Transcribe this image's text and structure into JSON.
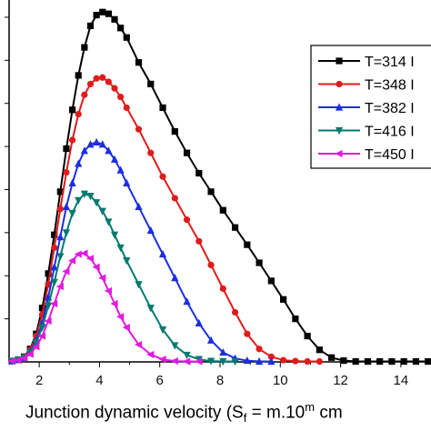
{
  "chart_data": {
    "type": "line",
    "xlabel": {
      "prefix": "Junction dynamic velocity (S",
      "sub": "f",
      "mid": " = m.10",
      "sup": "m",
      "suffix": " cm"
    },
    "xlim": [
      1,
      15
    ],
    "ylim": [
      0,
      8.4
    ],
    "x_ticks": [
      2,
      4,
      6,
      8,
      10,
      12,
      14
    ],
    "y_ticks": [
      1,
      2,
      3,
      4,
      5,
      6,
      7,
      8
    ],
    "grid": false,
    "legend_position": "top-right",
    "series": [
      {
        "name": "T=314 I",
        "color": "#000000",
        "marker": "square",
        "x": [
          1.1,
          1.3,
          1.5,
          1.7,
          1.9,
          2.1,
          2.3,
          2.5,
          2.7,
          2.9,
          3.1,
          3.3,
          3.5,
          3.7,
          3.9,
          4.1,
          4.3,
          4.5,
          4.7,
          4.9,
          5.3,
          5.7,
          6.1,
          6.5,
          6.9,
          7.3,
          7.7,
          8.1,
          8.5,
          8.9,
          9.3,
          9.7,
          10.1,
          10.5,
          10.9,
          11.3,
          11.7,
          12.1,
          12.5,
          12.9,
          13.3,
          13.7,
          14.1,
          14.5,
          14.9
        ],
        "y": [
          0.02,
          0.05,
          0.12,
          0.3,
          0.65,
          1.25,
          2.05,
          2.95,
          3.95,
          4.95,
          5.85,
          6.65,
          7.3,
          7.8,
          8.05,
          8.12,
          8.08,
          7.95,
          7.75,
          7.53,
          6.95,
          6.45,
          5.9,
          5.35,
          4.85,
          4.38,
          3.95,
          3.52,
          3.12,
          2.72,
          2.3,
          1.88,
          1.45,
          1.0,
          0.6,
          0.28,
          0.1,
          0.03,
          0.01,
          0.01,
          0.01,
          0.01,
          0.01,
          0.01,
          0.01
        ]
      },
      {
        "name": "T=348 I",
        "color": "#e01b1b",
        "marker": "circle",
        "x": [
          1.1,
          1.3,
          1.5,
          1.7,
          1.9,
          2.1,
          2.3,
          2.5,
          2.7,
          2.9,
          3.1,
          3.3,
          3.5,
          3.7,
          3.9,
          4.1,
          4.3,
          4.5,
          4.7,
          4.9,
          5.3,
          5.7,
          6.1,
          6.5,
          6.9,
          7.3,
          7.7,
          8.1,
          8.5,
          8.9,
          9.3,
          9.7,
          10.1,
          10.5,
          10.9,
          11.3
        ],
        "y": [
          0.02,
          0.05,
          0.12,
          0.28,
          0.6,
          1.1,
          1.8,
          2.65,
          3.55,
          4.4,
          5.15,
          5.75,
          6.2,
          6.45,
          6.58,
          6.6,
          6.5,
          6.35,
          6.15,
          5.9,
          5.4,
          4.85,
          4.3,
          3.8,
          3.3,
          2.8,
          2.25,
          1.7,
          1.15,
          0.65,
          0.3,
          0.12,
          0.04,
          0.02,
          0.01,
          0.01
        ]
      },
      {
        "name": "T=382 I",
        "color": "#1b2ee0",
        "marker": "triangle-up",
        "x": [
          1.1,
          1.3,
          1.5,
          1.7,
          1.9,
          2.1,
          2.3,
          2.5,
          2.7,
          2.9,
          3.1,
          3.3,
          3.5,
          3.7,
          3.9,
          4.1,
          4.3,
          4.5,
          4.7,
          4.9,
          5.3,
          5.7,
          6.1,
          6.5,
          6.9,
          7.3,
          7.7,
          8.1,
          8.5,
          8.9,
          9.3,
          9.7
        ],
        "y": [
          0.02,
          0.05,
          0.1,
          0.24,
          0.5,
          0.9,
          1.5,
          2.2,
          2.9,
          3.6,
          4.15,
          4.6,
          4.9,
          5.05,
          5.1,
          5.05,
          4.9,
          4.7,
          4.45,
          4.15,
          3.6,
          3.05,
          2.5,
          1.95,
          1.4,
          0.9,
          0.5,
          0.22,
          0.08,
          0.03,
          0.01,
          0.01
        ]
      },
      {
        "name": "T=416 I",
        "color": "#007a70",
        "marker": "triangle-down",
        "x": [
          1.1,
          1.3,
          1.5,
          1.7,
          1.9,
          2.1,
          2.3,
          2.5,
          2.7,
          2.9,
          3.1,
          3.3,
          3.5,
          3.7,
          3.9,
          4.1,
          4.3,
          4.5,
          4.7,
          4.9,
          5.3,
          5.7,
          6.1,
          6.5,
          6.9,
          7.3,
          7.7,
          8.1,
          8.5
        ],
        "y": [
          0.02,
          0.05,
          0.1,
          0.22,
          0.45,
          0.8,
          1.3,
          1.85,
          2.45,
          3.0,
          3.45,
          3.75,
          3.9,
          3.85,
          3.7,
          3.5,
          3.25,
          2.95,
          2.65,
          2.35,
          1.8,
          1.25,
          0.75,
          0.38,
          0.16,
          0.06,
          0.02,
          0.01,
          0.01
        ]
      },
      {
        "name": "T=450 I",
        "color": "#e01be0",
        "marker": "triangle-left",
        "x": [
          1.1,
          1.3,
          1.5,
          1.7,
          1.9,
          2.1,
          2.3,
          2.5,
          2.7,
          2.9,
          3.1,
          3.3,
          3.5,
          3.7,
          3.9,
          4.1,
          4.3,
          4.5,
          4.7,
          4.9,
          5.3,
          5.7,
          6.1,
          6.5,
          6.9,
          7.3
        ],
        "y": [
          0.02,
          0.04,
          0.09,
          0.18,
          0.35,
          0.6,
          0.95,
          1.35,
          1.75,
          2.1,
          2.35,
          2.5,
          2.52,
          2.4,
          2.2,
          1.95,
          1.65,
          1.35,
          1.05,
          0.8,
          0.4,
          0.17,
          0.06,
          0.02,
          0.01,
          0.01
        ]
      }
    ]
  }
}
